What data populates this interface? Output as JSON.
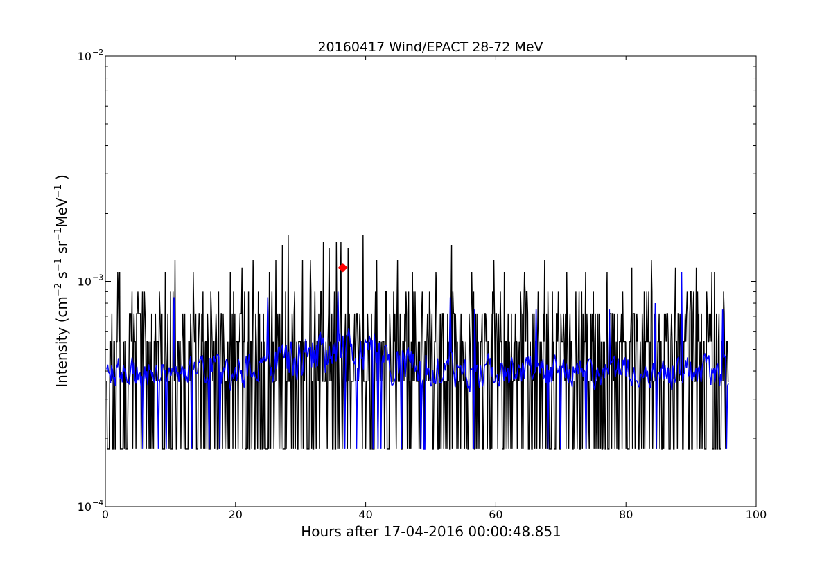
{
  "chart_data": {
    "type": "line",
    "title": "20160417 Wind/EPACT 28-72 MeV",
    "xlabel": "Hours after 17-04-2016 00:00:48.851",
    "ylabel": "Intensity (cm⁻² s⁻¹ sr⁻¹ MeV⁻¹)",
    "ylabel_parts": {
      "prefix": "Intensity (cm",
      "e1": "−2",
      "s": " s",
      "e2": "−1",
      "sr": " sr",
      "e3": "−1",
      "mev": "MeV",
      "e4": "−1",
      "suffix": " )"
    },
    "xlim": [
      0,
      100
    ],
    "ylim": [
      0.0001,
      0.01
    ],
    "yscale": "log",
    "grid": false,
    "legend": "none",
    "x_tick_labels": [
      "0",
      "20",
      "40",
      "60",
      "80",
      "100"
    ],
    "y_tick_labels": [
      {
        "base": "10",
        "exp": "−4"
      },
      {
        "base": "10",
        "exp": "−3"
      },
      {
        "base": "10",
        "exp": "−2"
      }
    ],
    "series_colors": [
      "#000000",
      "#0000ff"
    ],
    "marker_color": "#ff0000",
    "raw_levels": [
      0.00018,
      0.00036,
      0.00054,
      0.00072,
      0.0009,
      0.00108
    ],
    "raw_x_range": [
      0.2,
      95.8
    ],
    "raw_step_hours": 0.1,
    "smooth_x_range": [
      0.2,
      95.8
    ],
    "smooth_range": [
      0.00018,
      0.00085
    ],
    "peak": {
      "x": 36.5,
      "y": 0.00115
    },
    "raw_spikes": [
      {
        "x": 1.9,
        "y": 0.0011
      },
      {
        "x": 2.2,
        "y": 0.0011
      },
      {
        "x": 5.0,
        "y": 0.0009
      },
      {
        "x": 9.2,
        "y": 0.0011
      },
      {
        "x": 10.7,
        "y": 0.00125
      },
      {
        "x": 13.5,
        "y": 0.0011
      },
      {
        "x": 16.2,
        "y": 0.0009
      },
      {
        "x": 19.2,
        "y": 0.0011
      },
      {
        "x": 21.0,
        "y": 0.00115
      },
      {
        "x": 22.7,
        "y": 0.00125
      },
      {
        "x": 25.2,
        "y": 0.0011
      },
      {
        "x": 26.2,
        "y": 0.00125
      },
      {
        "x": 27.2,
        "y": 0.00145
      },
      {
        "x": 28.1,
        "y": 0.0016
      },
      {
        "x": 30.3,
        "y": 0.00125
      },
      {
        "x": 31.5,
        "y": 0.00125
      },
      {
        "x": 33.5,
        "y": 0.0015
      },
      {
        "x": 34.4,
        "y": 0.0014
      },
      {
        "x": 35.5,
        "y": 0.0015
      },
      {
        "x": 36.2,
        "y": 0.0015
      },
      {
        "x": 37.3,
        "y": 0.0014
      },
      {
        "x": 39.6,
        "y": 0.0016
      },
      {
        "x": 41.7,
        "y": 0.00125
      },
      {
        "x": 44.9,
        "y": 0.00125
      },
      {
        "x": 47.2,
        "y": 0.0011
      },
      {
        "x": 50.8,
        "y": 0.0011
      },
      {
        "x": 53.2,
        "y": 0.00145
      },
      {
        "x": 56.3,
        "y": 0.0011
      },
      {
        "x": 59.7,
        "y": 0.00125
      },
      {
        "x": 61.3,
        "y": 0.0011
      },
      {
        "x": 64.4,
        "y": 0.0011
      },
      {
        "x": 67.5,
        "y": 0.00125
      },
      {
        "x": 70.9,
        "y": 0.0011
      },
      {
        "x": 73.8,
        "y": 0.0011
      },
      {
        "x": 77.1,
        "y": 0.0011
      },
      {
        "x": 80.9,
        "y": 0.00115
      },
      {
        "x": 83.9,
        "y": 0.00125
      },
      {
        "x": 87.6,
        "y": 0.00115
      },
      {
        "x": 90.8,
        "y": 0.00115
      },
      {
        "x": 93.2,
        "y": 0.0011
      },
      {
        "x": 93.6,
        "y": 0.0011
      }
    ],
    "smooth_spikes": [
      {
        "x": 10.5,
        "y": 0.00085
      },
      {
        "x": 25.0,
        "y": 0.00085
      },
      {
        "x": 35.7,
        "y": 0.0009
      },
      {
        "x": 53.0,
        "y": 0.00085
      },
      {
        "x": 56.7,
        "y": 0.00075
      },
      {
        "x": 66.2,
        "y": 0.00075
      },
      {
        "x": 77.5,
        "y": 0.00075
      },
      {
        "x": 84.5,
        "y": 0.0008
      },
      {
        "x": 88.5,
        "y": 0.0011
      },
      {
        "x": 94.8,
        "y": 0.00075
      }
    ]
  }
}
